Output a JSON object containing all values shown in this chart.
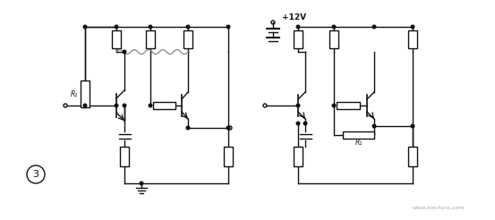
{
  "bg_color": "#ffffff",
  "line_color": "#111111",
  "fig_width": 5.53,
  "fig_height": 2.46,
  "dpi": 100,
  "label_plus12v": "+12V",
  "label_R1_left": "R₁",
  "label_R1_right": "R₁",
  "label_circle3": "3",
  "watermark": "www.elecfans.com",
  "squig_color": "#888888"
}
